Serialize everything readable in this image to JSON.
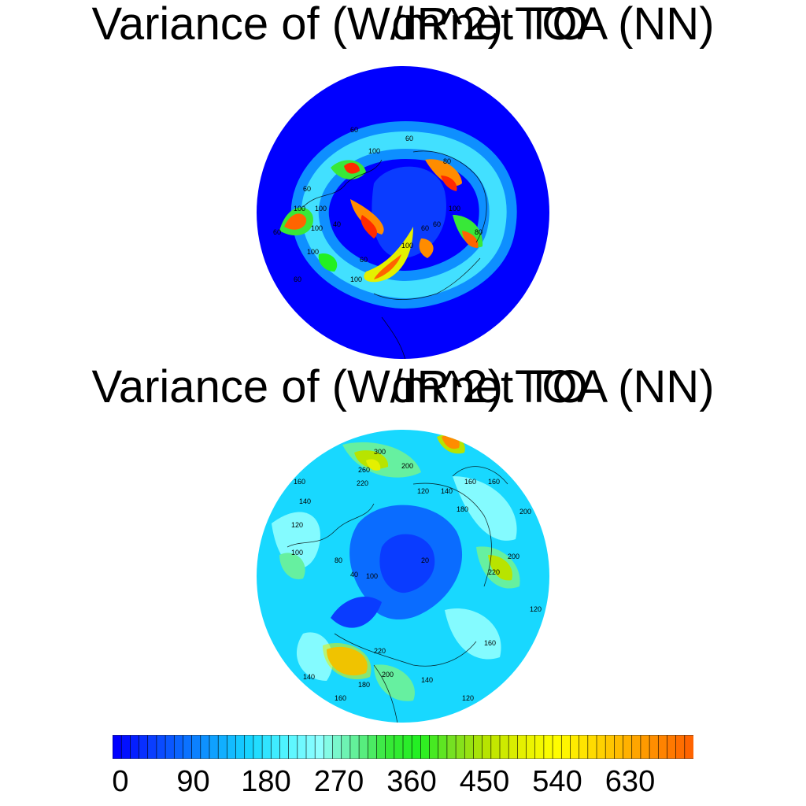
{
  "panels": [
    {
      "title_main": "Variance of (W/m^2) TOA (NN)",
      "title_overlay": "dRnet TO",
      "contour_labels": [
        "60",
        "60",
        "100",
        "100",
        "60",
        "40",
        "80",
        "60",
        "100",
        "100",
        "100",
        "60",
        "80",
        "100",
        "60",
        "100",
        "100",
        "60",
        "60"
      ]
    },
    {
      "title_main": "Variance of (W/m^2) TOA (NN)",
      "title_overlay": "dRnet TO",
      "contour_labels": [
        "300",
        "260",
        "220",
        "200",
        "160",
        "180",
        "160",
        "140",
        "120",
        "100",
        "120",
        "140",
        "160",
        "200",
        "220",
        "200",
        "120",
        "160",
        "140",
        "120",
        "160",
        "200",
        "180",
        "220",
        "140",
        "120",
        "80",
        "100",
        "40",
        "20"
      ]
    }
  ],
  "colorbar": {
    "tick_labels": [
      "0",
      "90",
      "180",
      "270",
      "360",
      "450",
      "540",
      "630"
    ],
    "segments": 66,
    "colors": [
      "#0000ff",
      "#0a3cff",
      "#0a6cff",
      "#10a8ff",
      "#18d8ff",
      "#50f4ff",
      "#90ffff",
      "#66f0a0",
      "#38e838",
      "#22f022",
      "#7ae022",
      "#b8e400",
      "#e4f000",
      "#ffff00",
      "#ffe000",
      "#ffb800",
      "#ff8c00",
      "#ff6400"
    ]
  }
}
